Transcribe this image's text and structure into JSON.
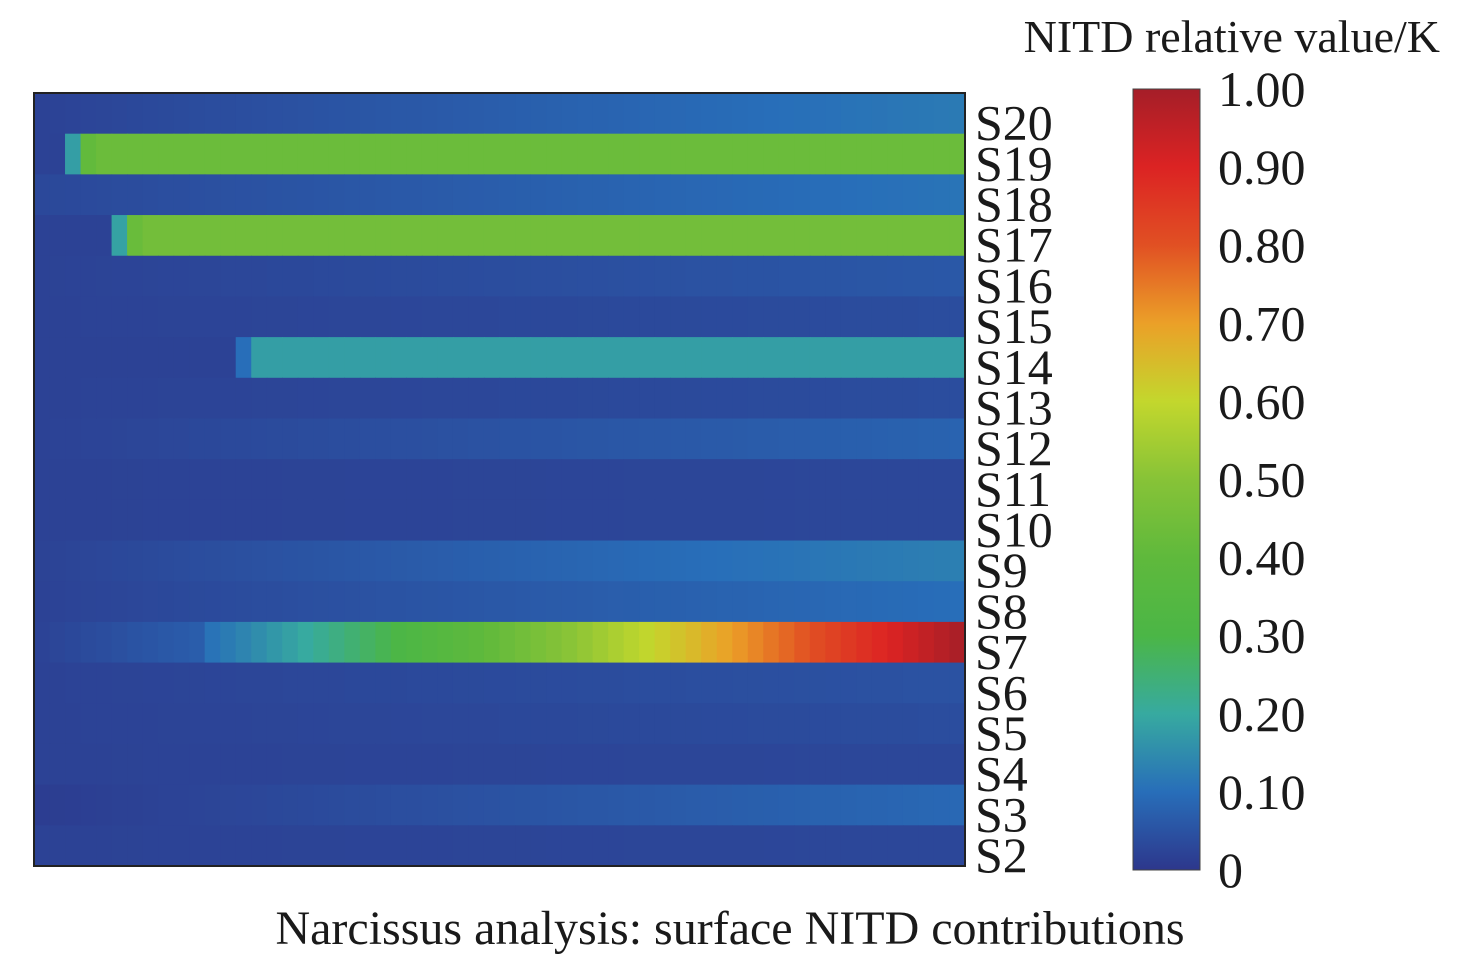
{
  "chart_data": {
    "type": "heatmap",
    "title": "",
    "xlabel": "Narcissus analysis: surface NITD contributions",
    "ylabel": "",
    "colorbar": {
      "title": "NITD relative value/K",
      "range": [
        0,
        1
      ],
      "ticks": [
        "0",
        "0.10",
        "0.20",
        "0.30",
        "0.40",
        "0.50",
        "0.60",
        "0.70",
        "0.80",
        "0.90",
        "1.00"
      ],
      "colormap": "jet"
    },
    "rows": [
      "S20",
      "S19",
      "S18",
      "S17",
      "S16",
      "S15",
      "S14",
      "S13",
      "S12",
      "S11",
      "S10",
      "S9",
      "S8",
      "S7",
      "S6",
      "S5",
      "S4",
      "S3",
      "S2"
    ],
    "x_resolution": 60,
    "row_profiles": {
      "S20": {
        "kind": "ramp",
        "start": 0.02,
        "end": 0.12
      },
      "S19": {
        "kind": "step",
        "onset": 0.03,
        "level": 0.43
      },
      "S18": {
        "kind": "ramp",
        "start": 0.03,
        "end": 0.11
      },
      "S17": {
        "kind": "step",
        "onset": 0.08,
        "level": 0.45
      },
      "S16": {
        "kind": "ramp",
        "start": 0.02,
        "end": 0.06
      },
      "S15": {
        "kind": "ramp",
        "start": 0.02,
        "end": 0.04
      },
      "S14": {
        "kind": "step",
        "onset": 0.21,
        "level": 0.18
      },
      "S13": {
        "kind": "ramp",
        "start": 0.02,
        "end": 0.04
      },
      "S12": {
        "kind": "ramp",
        "start": 0.02,
        "end": 0.08
      },
      "S11": {
        "kind": "ramp",
        "start": 0.02,
        "end": 0.03
      },
      "S10": {
        "kind": "ramp",
        "start": 0.02,
        "end": 0.03
      },
      "S9": {
        "kind": "ramp",
        "start": 0.02,
        "end": 0.13
      },
      "S8": {
        "kind": "ramp",
        "start": 0.02,
        "end": 0.1
      },
      "S7": {
        "kind": "ramp7",
        "onset": 0.18,
        "start": 0.1,
        "end": 1.0
      },
      "S6": {
        "kind": "ramp",
        "start": 0.02,
        "end": 0.05
      },
      "S5": {
        "kind": "ramp",
        "start": 0.02,
        "end": 0.04
      },
      "S4": {
        "kind": "ramp",
        "start": 0.02,
        "end": 0.03
      },
      "S3": {
        "kind": "ramp",
        "start": 0.01,
        "end": 0.09
      },
      "S2": {
        "kind": "ramp",
        "start": 0.02,
        "end": 0.03
      }
    }
  }
}
